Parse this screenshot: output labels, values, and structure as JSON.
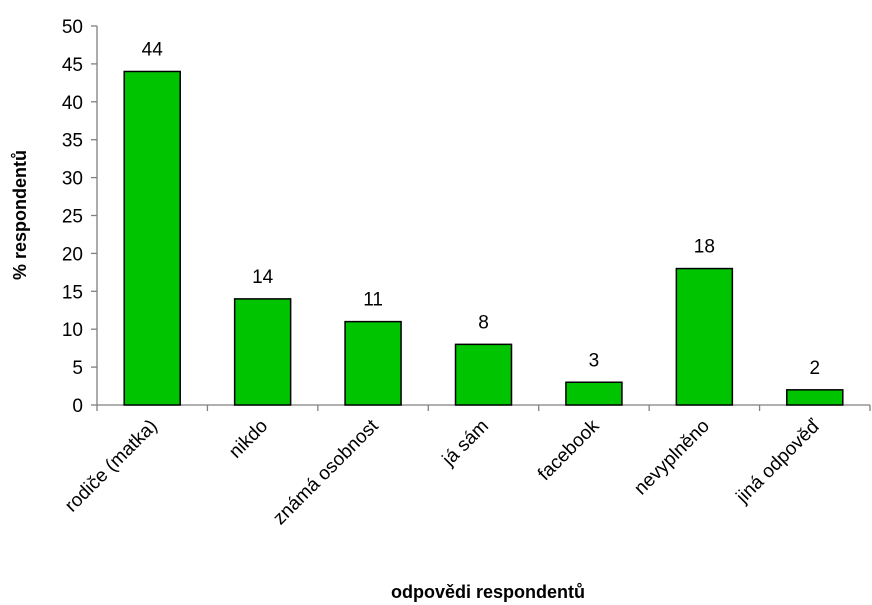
{
  "chart_data": {
    "type": "bar",
    "title": "",
    "xlabel": "odpovědi respondentů",
    "ylabel": "% respondentů",
    "ylim": [
      0,
      50
    ],
    "y_ticks": [
      0,
      5,
      10,
      15,
      20,
      25,
      30,
      35,
      40,
      45,
      50
    ],
    "categories": [
      "rodiče (matka)",
      "nikdo",
      "známá osobnost",
      "já sám",
      "facebook",
      "nevyplněno",
      "jiná odpověď"
    ],
    "values": [
      44,
      14,
      11,
      8,
      3,
      18,
      2
    ],
    "data_labels": [
      "44",
      "14",
      "11",
      "8",
      "3",
      "18",
      "2"
    ],
    "bar_color": "#00c400",
    "grid": false,
    "legend": "none"
  }
}
